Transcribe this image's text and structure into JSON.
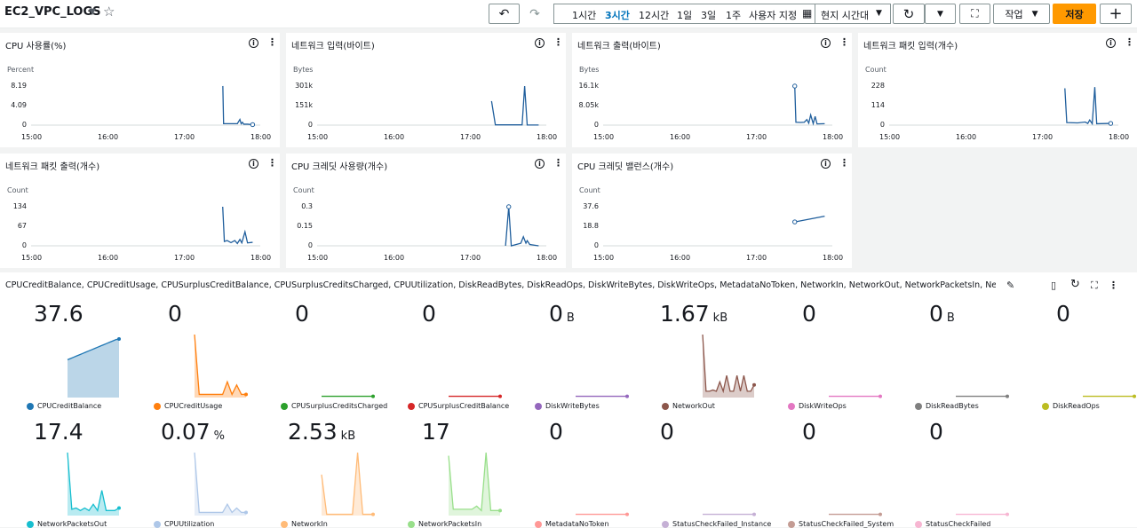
{
  "header": {
    "title": "EC2_VPC_LOGS",
    "undo_icon": "↶",
    "redo_icon": "↷",
    "time_ranges": [
      "1시간",
      "3시간",
      "12시간",
      "1일",
      "3일",
      "1주",
      "사용자 지정"
    ],
    "selected_range": "3시간",
    "timezone": "현지 시간대",
    "actions_label": "작업",
    "save_label": "저장",
    "add_label": "+"
  },
  "panels": [
    {
      "title": "CPU 사용률(%)",
      "unit": "Percent",
      "yticks": [
        "8.19",
        "4.09",
        "0"
      ],
      "xticks": [
        "15:00",
        "16:00",
        "17:00",
        "18:00"
      ],
      "data": [
        [
          150.6,
          8.2
        ],
        [
          151.2,
          0.3
        ],
        [
          155,
          0.3
        ],
        [
          162,
          0.3
        ],
        [
          164,
          1.2
        ],
        [
          165,
          0.3
        ],
        [
          166,
          0.6
        ],
        [
          167,
          0.2
        ],
        [
          170,
          0.2
        ],
        [
          174,
          0.1
        ]
      ]
    },
    {
      "title": "네트워크 입력(바이트)",
      "unit": "Bytes",
      "yticks": [
        "301k",
        "151k",
        "0"
      ],
      "xticks": [
        "15:00",
        "16:00",
        "17:00",
        "18:00"
      ],
      "data": [
        [
          137,
          185000
        ],
        [
          140,
          2000
        ],
        [
          152,
          2000
        ],
        [
          158,
          2000
        ],
        [
          161,
          2000
        ],
        [
          163,
          301000
        ],
        [
          165,
          1000
        ],
        [
          174,
          1000
        ]
      ]
    },
    {
      "title": "네트워크 출력(바이트)",
      "unit": "Bytes",
      "yticks": [
        "16.1k",
        "8.05k",
        "0"
      ],
      "xticks": [
        "15:00",
        "16:00",
        "17:00",
        "18:00"
      ],
      "data": [
        [
          150.5,
          16100
        ],
        [
          151.4,
          1200
        ],
        [
          155,
          1100
        ],
        [
          158,
          1200
        ],
        [
          160,
          2300
        ],
        [
          161.5,
          800
        ],
        [
          163,
          4200
        ],
        [
          165,
          600
        ],
        [
          166.5,
          3600
        ],
        [
          168,
          500
        ],
        [
          174,
          600
        ]
      ]
    },
    {
      "title": "네트워크 패킷 입력(개수)",
      "unit": "Count",
      "yticks": [
        "228",
        "114",
        "0"
      ],
      "xticks": [
        "15:00",
        "16:00",
        "17:00",
        "18:00"
      ],
      "data": [
        [
          138,
          215
        ],
        [
          139.5,
          15
        ],
        [
          148,
          13
        ],
        [
          154,
          18
        ],
        [
          156,
          10
        ],
        [
          157.5,
          30
        ],
        [
          159.5,
          8
        ],
        [
          161.5,
          222
        ],
        [
          163,
          8
        ],
        [
          174,
          10
        ]
      ]
    },
    {
      "title": "네트워크 패킷 출력(개수)",
      "unit": "Count",
      "yticks": [
        "134",
        "67",
        "0"
      ],
      "xticks": [
        "15:00",
        "16:00",
        "17:00",
        "18:00"
      ],
      "data": [
        [
          150.5,
          134
        ],
        [
          151.8,
          15
        ],
        [
          154,
          18
        ],
        [
          157,
          11
        ],
        [
          160,
          18
        ],
        [
          162,
          8
        ],
        [
          164,
          22
        ],
        [
          165.5,
          10
        ],
        [
          168,
          48
        ],
        [
          170,
          10
        ],
        [
          174,
          12
        ]
      ]
    },
    {
      "title": "CPU 크레딧 사용량(개수)",
      "unit": "Count",
      "yticks": [
        "0.3",
        "0.15",
        "0"
      ],
      "xticks": [
        "15:00",
        "16:00",
        "17:00",
        "18:00"
      ],
      "data": [
        [
          148,
          0
        ],
        [
          150.5,
          0.3
        ],
        [
          152.5,
          0
        ],
        [
          160,
          0.02
        ],
        [
          162,
          0.07
        ],
        [
          164,
          0.02
        ],
        [
          165,
          0.04
        ],
        [
          167,
          0.01
        ],
        [
          174,
          0
        ]
      ]
    },
    {
      "title": "CPU 크레딧 밸런스(개수)",
      "unit": "Count",
      "yticks": [
        "37.6",
        "18.8",
        "0"
      ],
      "xticks": [
        "15:00",
        "16:00",
        "17:00",
        "18:00"
      ],
      "data": [
        [
          150.5,
          23
        ],
        [
          174,
          28.5
        ]
      ]
    }
  ],
  "bottom": {
    "metrics_label": "CPUCreditBalance, CPUCreditUsage, CPUSurplusCreditBalance, CPUSurplusCreditsCharged, CPUUtilization, DiskReadBytes, DiskReadOps, DiskWriteBytes, DiskWriteOps, MetadataNoToken, NetworkIn, NetworkOut, NetworkPacketsIn, NetworkPack...",
    "tiles": [
      {
        "value": "37.6",
        "unit": "",
        "name": "CPUCreditBalance",
        "color": "#1f77b4",
        "fill": true,
        "shape": "balance"
      },
      {
        "value": "0",
        "unit": "",
        "name": "CPUCreditUsage",
        "color": "#ff7f0e",
        "fill": true,
        "shape": "usage"
      },
      {
        "value": "0",
        "unit": "",
        "name": "CPUSurplusCreditsCharged",
        "color": "#2ca02c",
        "fill": false,
        "shape": "flat"
      },
      {
        "value": "0",
        "unit": "",
        "name": "CPUSurplusCreditBalance",
        "color": "#d62728",
        "fill": false,
        "shape": "flat"
      },
      {
        "value": "0",
        "unit": "B",
        "name": "DiskWriteBytes",
        "color": "#9467bd",
        "fill": false,
        "shape": "flat"
      },
      {
        "value": "1.67",
        "unit": "kB",
        "name": "NetworkOut",
        "color": "#8c564b",
        "fill": true,
        "shape": "netout"
      },
      {
        "value": "0",
        "unit": "",
        "name": "DiskWriteOps",
        "color": "#e377c2",
        "fill": false,
        "shape": "flat"
      },
      {
        "value": "0",
        "unit": "B",
        "name": "DiskReadBytes",
        "color": "#7f7f7f",
        "fill": false,
        "shape": "flat"
      },
      {
        "value": "0",
        "unit": "",
        "name": "DiskReadOps",
        "color": "#bcbd22",
        "fill": false,
        "shape": "flat"
      },
      {
        "value": "17.4",
        "unit": "",
        "name": "NetworkPacketsOut",
        "color": "#17becf",
        "fill": true,
        "shape": "pktout"
      },
      {
        "value": "0.07",
        "unit": "%",
        "name": "CPUUtilization",
        "color": "#aec7e8",
        "fill": true,
        "shape": "cpu"
      },
      {
        "value": "2.53",
        "unit": "kB",
        "name": "NetworkIn",
        "color": "#ffbb78",
        "fill": true,
        "shape": "netin"
      },
      {
        "value": "17",
        "unit": "",
        "name": "NetworkPacketsIn",
        "color": "#98df8a",
        "fill": true,
        "shape": "pktin"
      },
      {
        "value": "0",
        "unit": "",
        "name": "MetadataNoToken",
        "color": "#ff9896",
        "fill": false,
        "shape": "flat"
      },
      {
        "value": "0",
        "unit": "",
        "name": "StatusCheckFailed_Instance",
        "color": "#c5b0d5",
        "fill": false,
        "shape": "flat"
      },
      {
        "value": "0",
        "unit": "",
        "name": "StatusCheckFailed_System",
        "color": "#c49c94",
        "fill": false,
        "shape": "flat"
      },
      {
        "value": "0",
        "unit": "",
        "name": "StatusCheckFailed",
        "color": "#f7b6d2",
        "fill": false,
        "shape": "flat"
      }
    ]
  }
}
